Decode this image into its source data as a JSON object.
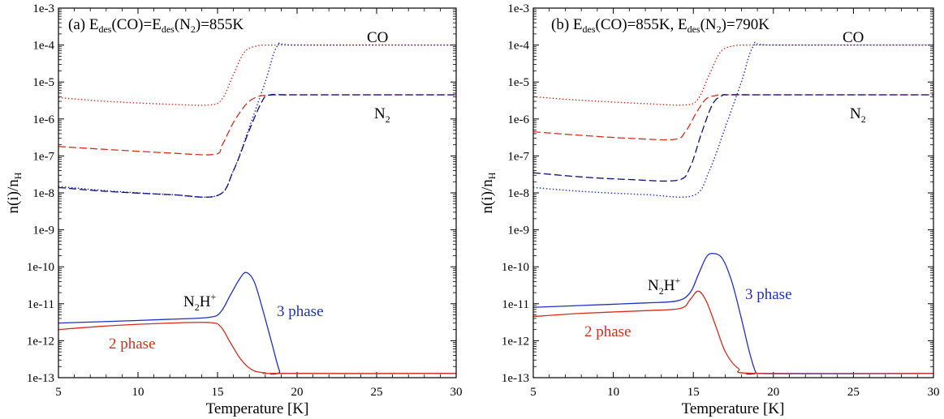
{
  "colors": {
    "red": "#d62c1a",
    "blue": "#1f2fc4",
    "navy": "#10107a",
    "axis": "#000000"
  },
  "chart_data": [
    {
      "type": "line",
      "panel": "a",
      "title": "(a) E_des(CO)=E_des(N_2)=855K",
      "xlabel": "Temperature [K]",
      "ylabel": "n(i)/n_H",
      "xlim": [
        5,
        30
      ],
      "ylim": [
        1e-13,
        0.001
      ],
      "yscale": "log",
      "xticks": [
        "5",
        "10",
        "15",
        "20",
        "25",
        "30"
      ],
      "yticks": [
        "1e-13",
        "1e-12",
        "1e-11",
        "1e-10",
        "1e-9",
        "1e-8",
        "1e-7",
        "1e-6",
        "1e-5",
        "1e-4",
        "1e-3"
      ],
      "annotations": [
        "CO",
        "N2",
        "N2H+",
        "3 phase",
        "2 phase"
      ],
      "series": [
        {
          "species": "CO",
          "model": "2 phase",
          "color": "red",
          "style": "dotted",
          "x": [
            5,
            8,
            12,
            14.5,
            15.3,
            16,
            16.7,
            17.5,
            18.5,
            20,
            30
          ],
          "y": [
            3.8e-06,
            3e-06,
            2.5e-06,
            2.4e-06,
            3.5e-06,
            1.6e-05,
            6.5e-05,
            9.5e-05,
            0.0001,
            0.0001,
            0.0001
          ]
        },
        {
          "species": "CO",
          "model": "3 phase",
          "color": "blue",
          "style": "dotted",
          "x": [
            5,
            8,
            12,
            15,
            16,
            17,
            18,
            18.8,
            20,
            30
          ],
          "y": [
            1.5e-08,
            1.15e-08,
            9e-09,
            8.5e-09,
            4e-08,
            6e-07,
            1e-05,
            0.0001,
            0.0001,
            0.0001
          ]
        },
        {
          "species": "N2",
          "model": "2 phase",
          "color": "red",
          "style": "dashed",
          "x": [
            5,
            8,
            12,
            14.8,
            15.3,
            16,
            16.8,
            17.5,
            18.3,
            20,
            30
          ],
          "y": [
            1.8e-07,
            1.5e-07,
            1.2e-07,
            1.1e-07,
            2e-07,
            8e-07,
            2.5e-06,
            4e-06,
            4.4e-06,
            4.5e-06,
            4.5e-06
          ]
        },
        {
          "species": "N2",
          "model": "3 phase",
          "color": "blue",
          "style": "dashed",
          "x": [
            5,
            8,
            12,
            15,
            16,
            17,
            17.8,
            18.3,
            20,
            30
          ],
          "y": [
            1.4e-08,
            1.1e-08,
            9e-09,
            8.5e-09,
            4e-08,
            5e-07,
            3e-06,
            4.5e-06,
            4.5e-06,
            4.5e-06
          ]
        },
        {
          "species": "N2H+",
          "model": "3 phase",
          "color": "blue",
          "style": "solid",
          "x": [
            5,
            8,
            12,
            14.5,
            15.2,
            15.8,
            16.4,
            16.8,
            17.3,
            17.8,
            18.4,
            18.9,
            19.2,
            30
          ],
          "y": [
            3e-12,
            3.3e-12,
            3.8e-12,
            4.3e-12,
            6e-12,
            1.7e-11,
            4.8e-11,
            7e-11,
            4e-11,
            8e-12,
            9e-13,
            1.5e-13,
            1.3e-13,
            1.3e-13
          ]
        },
        {
          "species": "N2H+",
          "model": "2 phase",
          "color": "red",
          "style": "solid",
          "x": [
            5,
            8,
            12,
            14.5,
            15.2,
            15.8,
            16.5,
            17.2,
            18,
            19,
            30
          ],
          "y": [
            2e-12,
            2.5e-12,
            3e-12,
            3.1e-12,
            2.4e-12,
            9e-13,
            3e-13,
            1.6e-13,
            1.35e-13,
            1.3e-13,
            1.3e-13
          ]
        }
      ]
    },
    {
      "type": "line",
      "panel": "b",
      "title": "(b) E_des(CO)=855K, E_des(N_2)=790K",
      "xlabel": "Temperature [K]",
      "ylabel": "n(i)/n_H",
      "xlim": [
        5,
        30
      ],
      "ylim": [
        1e-13,
        0.001
      ],
      "yscale": "log",
      "xticks": [
        "5",
        "10",
        "15",
        "20",
        "25",
        "30"
      ],
      "yticks": [
        "1e-13",
        "1e-12",
        "1e-11",
        "1e-10",
        "1e-9",
        "1e-8",
        "1e-7",
        "1e-6",
        "1e-5",
        "1e-4",
        "1e-3"
      ],
      "annotations": [
        "CO",
        "N2",
        "N2H+",
        "3 phase",
        "2 phase"
      ],
      "series": [
        {
          "species": "CO",
          "model": "2 phase",
          "color": "red",
          "style": "dotted",
          "x": [
            5,
            8,
            12,
            14.5,
            15.3,
            16,
            16.7,
            17.5,
            18.5,
            20,
            30
          ],
          "y": [
            4e-06,
            3.2e-06,
            2.6e-06,
            2.4e-06,
            3.5e-06,
            1.6e-05,
            6.5e-05,
            9.5e-05,
            0.0001,
            0.0001,
            0.0001
          ]
        },
        {
          "species": "CO",
          "model": "3 phase",
          "color": "blue",
          "style": "dotted",
          "x": [
            5,
            8,
            12,
            15,
            16,
            17,
            18,
            18.8,
            20,
            30
          ],
          "y": [
            1.4e-08,
            1.1e-08,
            9e-09,
            8.5e-09,
            4e-08,
            6e-07,
            1e-05,
            0.0001,
            0.0001,
            0.0001
          ]
        },
        {
          "species": "N2",
          "model": "2 phase",
          "color": "red",
          "style": "dashed",
          "x": [
            5,
            8,
            11,
            13.8,
            14.5,
            15.2,
            15.8,
            16.4,
            17,
            20,
            30
          ],
          "y": [
            4.5e-07,
            3.6e-07,
            3e-07,
            2.8e-07,
            4.5e-07,
            1.5e-06,
            3.5e-06,
            4.3e-06,
            4.5e-06,
            4.5e-06,
            4.5e-06
          ]
        },
        {
          "species": "N2",
          "model": "3 phase",
          "color": "blue",
          "style": "dashed",
          "x": [
            5,
            8,
            11,
            14,
            14.8,
            15.5,
            16.2,
            16.8,
            17.3,
            20,
            30
          ],
          "y": [
            3.5e-08,
            2.7e-08,
            2.3e-08,
            2.2e-08,
            5e-08,
            4e-07,
            2.5e-06,
            4.3e-06,
            4.5e-06,
            4.5e-06,
            4.5e-06
          ]
        },
        {
          "species": "N2H+",
          "model": "3 phase",
          "color": "blue",
          "style": "solid",
          "x": [
            5,
            8,
            12,
            14,
            14.8,
            15.3,
            15.8,
            16.2,
            16.8,
            17.4,
            18,
            18.5,
            18.9,
            19.2,
            30
          ],
          "y": [
            8e-12,
            9e-12,
            1.05e-11,
            1.2e-11,
            2e-11,
            6e-11,
            1.8e-10,
            2.3e-10,
            1.7e-10,
            4e-11,
            4e-12,
            5e-13,
            1.4e-13,
            1.3e-13,
            1.3e-13
          ]
        },
        {
          "species": "N2H+",
          "model": "2 phase",
          "color": "red",
          "style": "solid",
          "x": [
            5,
            8,
            12,
            14.2,
            14.8,
            15.3,
            15.8,
            16.4,
            17,
            17.8,
            19,
            30
          ],
          "y": [
            4.5e-12,
            5.5e-12,
            6.5e-12,
            7.5e-12,
            1.3e-11,
            2.2e-11,
            1.2e-11,
            2.5e-12,
            5e-13,
            1.8e-13,
            1.3e-13,
            1.3e-13
          ]
        }
      ]
    }
  ]
}
